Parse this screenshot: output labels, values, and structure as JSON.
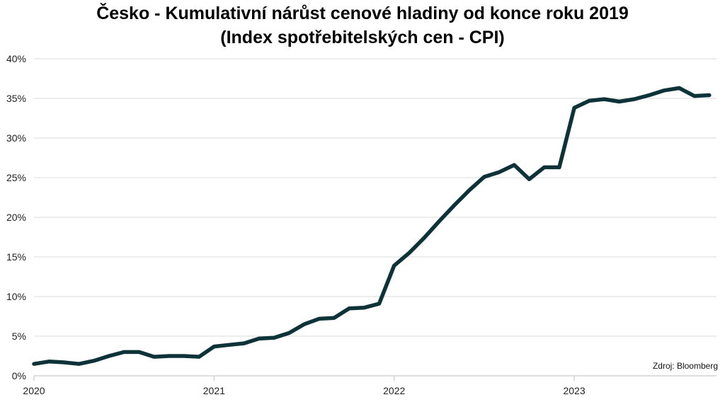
{
  "chart_data": {
    "type": "line",
    "title_line1": "Česko - Kumulativní nárůst cenové hladiny od konce roku 2019",
    "title_line2": "(Index spotřebitelských cen - CPI)",
    "xlabel": "",
    "ylabel": "",
    "source": "Zdroj: Bloomberg",
    "xlim": [
      2020.0,
      2023.79
    ],
    "ylim": [
      0,
      40
    ],
    "y_ticks": [
      0,
      5,
      10,
      15,
      20,
      25,
      30,
      35,
      40
    ],
    "y_tick_labels": [
      "0%",
      "5%",
      "10%",
      "15%",
      "20%",
      "25%",
      "30%",
      "35%",
      "40%"
    ],
    "x_ticks": [
      2020,
      2021,
      2022,
      2023
    ],
    "x_tick_labels": [
      "2020",
      "2021",
      "2022",
      "2023"
    ],
    "grid": "horizontal",
    "line_color": "#0d3339",
    "series": [
      {
        "name": "",
        "x": [
          "2020-01",
          "2020-02",
          "2020-03",
          "2020-04",
          "2020-05",
          "2020-06",
          "2020-07",
          "2020-08",
          "2020-09",
          "2020-10",
          "2020-11",
          "2020-12",
          "2021-01",
          "2021-02",
          "2021-03",
          "2021-04",
          "2021-05",
          "2021-06",
          "2021-07",
          "2021-08",
          "2021-09",
          "2021-10",
          "2021-11",
          "2021-12",
          "2022-01",
          "2022-02",
          "2022-03",
          "2022-04",
          "2022-05",
          "2022-06",
          "2022-07",
          "2022-08",
          "2022-09",
          "2022-10",
          "2022-11",
          "2022-12",
          "2023-01",
          "2023-02",
          "2023-03",
          "2023-04",
          "2023-05",
          "2023-06",
          "2023-07",
          "2023-08",
          "2023-09",
          "2023-10"
        ],
        "values": [
          1.5,
          1.8,
          1.7,
          1.5,
          1.9,
          2.5,
          3.0,
          3.0,
          2.4,
          2.5,
          2.5,
          2.4,
          3.7,
          3.9,
          4.1,
          4.7,
          4.8,
          5.4,
          6.5,
          7.2,
          7.3,
          8.5,
          8.6,
          9.1,
          13.9,
          15.5,
          17.4,
          19.5,
          21.5,
          23.4,
          25.1,
          25.7,
          26.6,
          24.8,
          26.3,
          26.3,
          33.8,
          34.7,
          34.9,
          34.6,
          34.9,
          35.4,
          36.0,
          36.3,
          35.3,
          35.4
        ]
      }
    ]
  }
}
